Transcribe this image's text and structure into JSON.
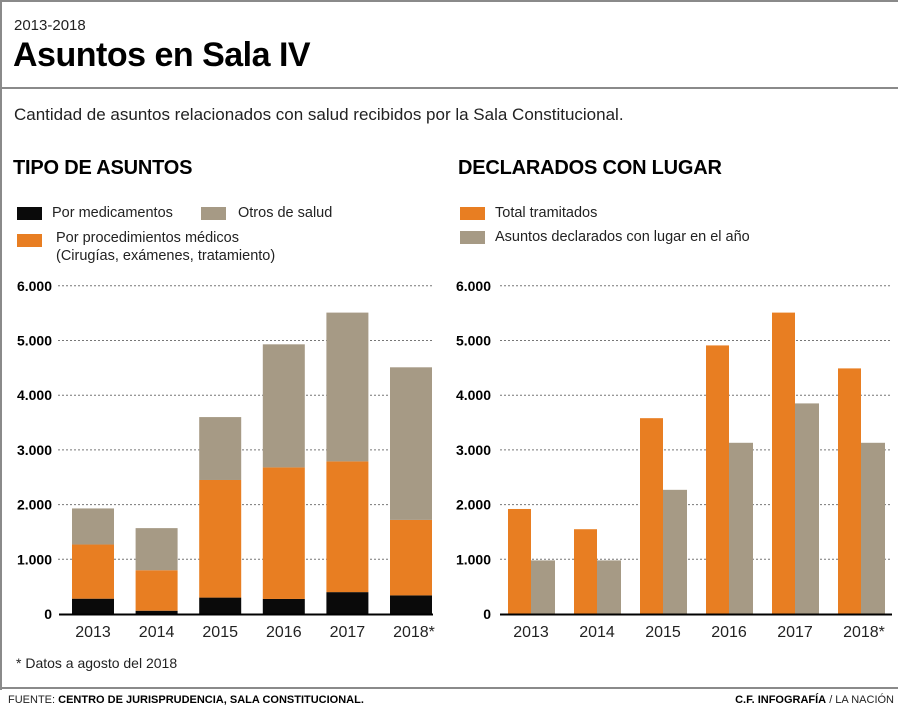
{
  "header": {
    "kicker": "2013-2018",
    "title": "Asuntos en Sala IV",
    "subtitle": "Cantidad de asuntos relacionados con salud recibidos por la Sala Constitucional."
  },
  "colors": {
    "black": "#0a0a0a",
    "orange": "#E87E22",
    "taupe": "#A69A85",
    "grid": "#777777",
    "frame": "#8a8a8a"
  },
  "left_panel": {
    "title": "TIPO DE ASUNTOS",
    "legend": [
      {
        "label": "Por medicamentos",
        "color": "#0a0a0a"
      },
      {
        "label": "Otros de salud",
        "color": "#A69A85"
      },
      {
        "label": "Por procedimientos médicos\n(Cirugías, exámenes, tratamiento)",
        "color": "#E87E22"
      }
    ]
  },
  "right_panel": {
    "title": "DECLARADOS CON LUGAR",
    "legend": [
      {
        "label": "Total tramitados",
        "color": "#E87E22"
      },
      {
        "label": "Asuntos declarados con lugar en el año",
        "color": "#A69A85"
      }
    ]
  },
  "chart_data": [
    {
      "type": "bar",
      "stacked": true,
      "title": "TIPO DE ASUNTOS",
      "categories": [
        "2013",
        "2014",
        "2015",
        "2016",
        "2017",
        "2018*"
      ],
      "series": [
        {
          "name": "Por medicamentos",
          "color": "#0a0a0a",
          "values": [
            280,
            60,
            300,
            275,
            400,
            340
          ]
        },
        {
          "name": "Por procedimientos médicos (Cirugías, exámenes, tratamiento)",
          "color": "#E87E22",
          "values": [
            990,
            740,
            2150,
            2405,
            2390,
            1380
          ]
        },
        {
          "name": "Otros de salud",
          "color": "#A69A85",
          "values": [
            660,
            770,
            1150,
            2250,
            2720,
            2790
          ]
        }
      ],
      "totals": [
        1930,
        1570,
        3600,
        4930,
        5510,
        4510
      ],
      "yticks": [
        0,
        1000,
        2000,
        3000,
        4000,
        5000,
        6000
      ],
      "ytick_labels": [
        "0",
        "1.000",
        "2.000",
        "3.000",
        "4.000",
        "5.000",
        "6.000"
      ],
      "ylim": [
        0,
        6000
      ],
      "grid": true,
      "xlabel": "",
      "ylabel": "",
      "legend_position": "top-left"
    },
    {
      "type": "bar",
      "stacked": false,
      "title": "DECLARADOS CON LUGAR",
      "categories": [
        "2013",
        "2014",
        "2015",
        "2016",
        "2017",
        "2018*"
      ],
      "series": [
        {
          "name": "Total tramitados",
          "color": "#E87E22",
          "values": [
            1920,
            1550,
            3580,
            4910,
            5510,
            4490
          ]
        },
        {
          "name": "Asuntos declarados con lugar en el año",
          "color": "#A69A85",
          "values": [
            980,
            980,
            2270,
            3130,
            3850,
            3130
          ]
        }
      ],
      "yticks": [
        0,
        1000,
        2000,
        3000,
        4000,
        5000,
        6000
      ],
      "ytick_labels": [
        "0",
        "1.000",
        "2.000",
        "3.000",
        "4.000",
        "5.000",
        "6.000"
      ],
      "ylim": [
        0,
        6000
      ],
      "grid": true,
      "xlabel": "",
      "ylabel": "",
      "legend_position": "top-left"
    }
  ],
  "footer": {
    "footnote": "* Datos a agosto del 2018",
    "source_prefix": "FUENTE: ",
    "source_text": "CENTRO DE JURISPRUDENCIA, SALA CONSTITUCIONAL.",
    "credit_bold": "C.F. INFOGRAFÍA",
    "credit_rest": " / LA NACIÓN"
  }
}
